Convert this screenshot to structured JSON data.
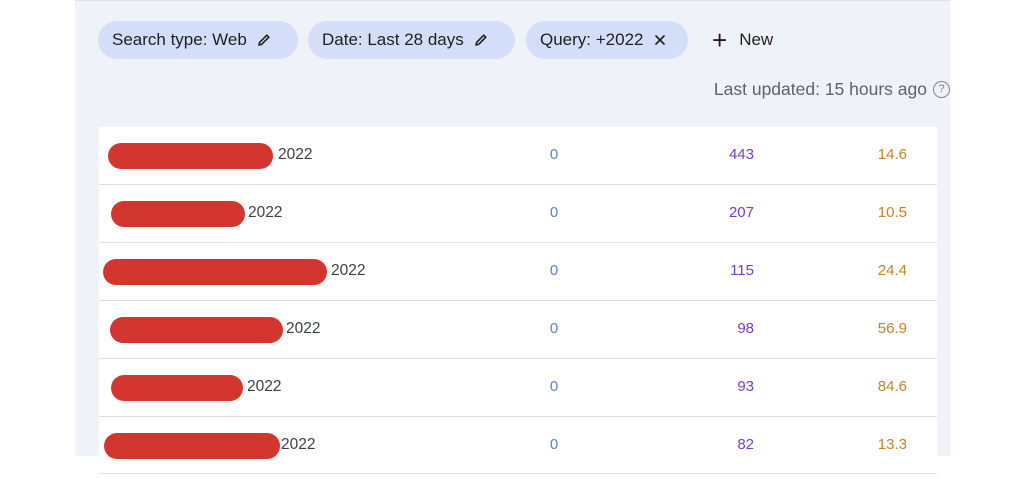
{
  "filters": [
    {
      "label": "Search type: Web",
      "icon": "pencil-icon"
    },
    {
      "label": "Date: Last 28 days",
      "icon": "pencil-icon"
    },
    {
      "label": "Query: +2022",
      "icon": "close-icon"
    }
  ],
  "new_button": {
    "label": "New",
    "icon": "plus-icon"
  },
  "last_updated": "Last updated: 15 hours ago",
  "rows": [
    {
      "query": "2022",
      "clicks": "0",
      "impressions": "443",
      "position": "14.6"
    },
    {
      "query": "2022",
      "clicks": "0",
      "impressions": "207",
      "position": "10.5"
    },
    {
      "query": "2022",
      "clicks": "0",
      "impressions": "115",
      "position": "24.4"
    },
    {
      "query": "2022",
      "clicks": "0",
      "impressions": "98",
      "position": "56.9"
    },
    {
      "query": "2022",
      "clicks": "0",
      "impressions": "93",
      "position": "84.6"
    },
    {
      "query": "2022",
      "clicks": "0",
      "impressions": "82",
      "position": "13.3"
    }
  ],
  "colors": {
    "chip_bg": "#d4def8",
    "redaction": "#d3362e",
    "clicks": "#5b7fd6",
    "impressions": "#7a3cc5",
    "position": "#c8812a"
  }
}
